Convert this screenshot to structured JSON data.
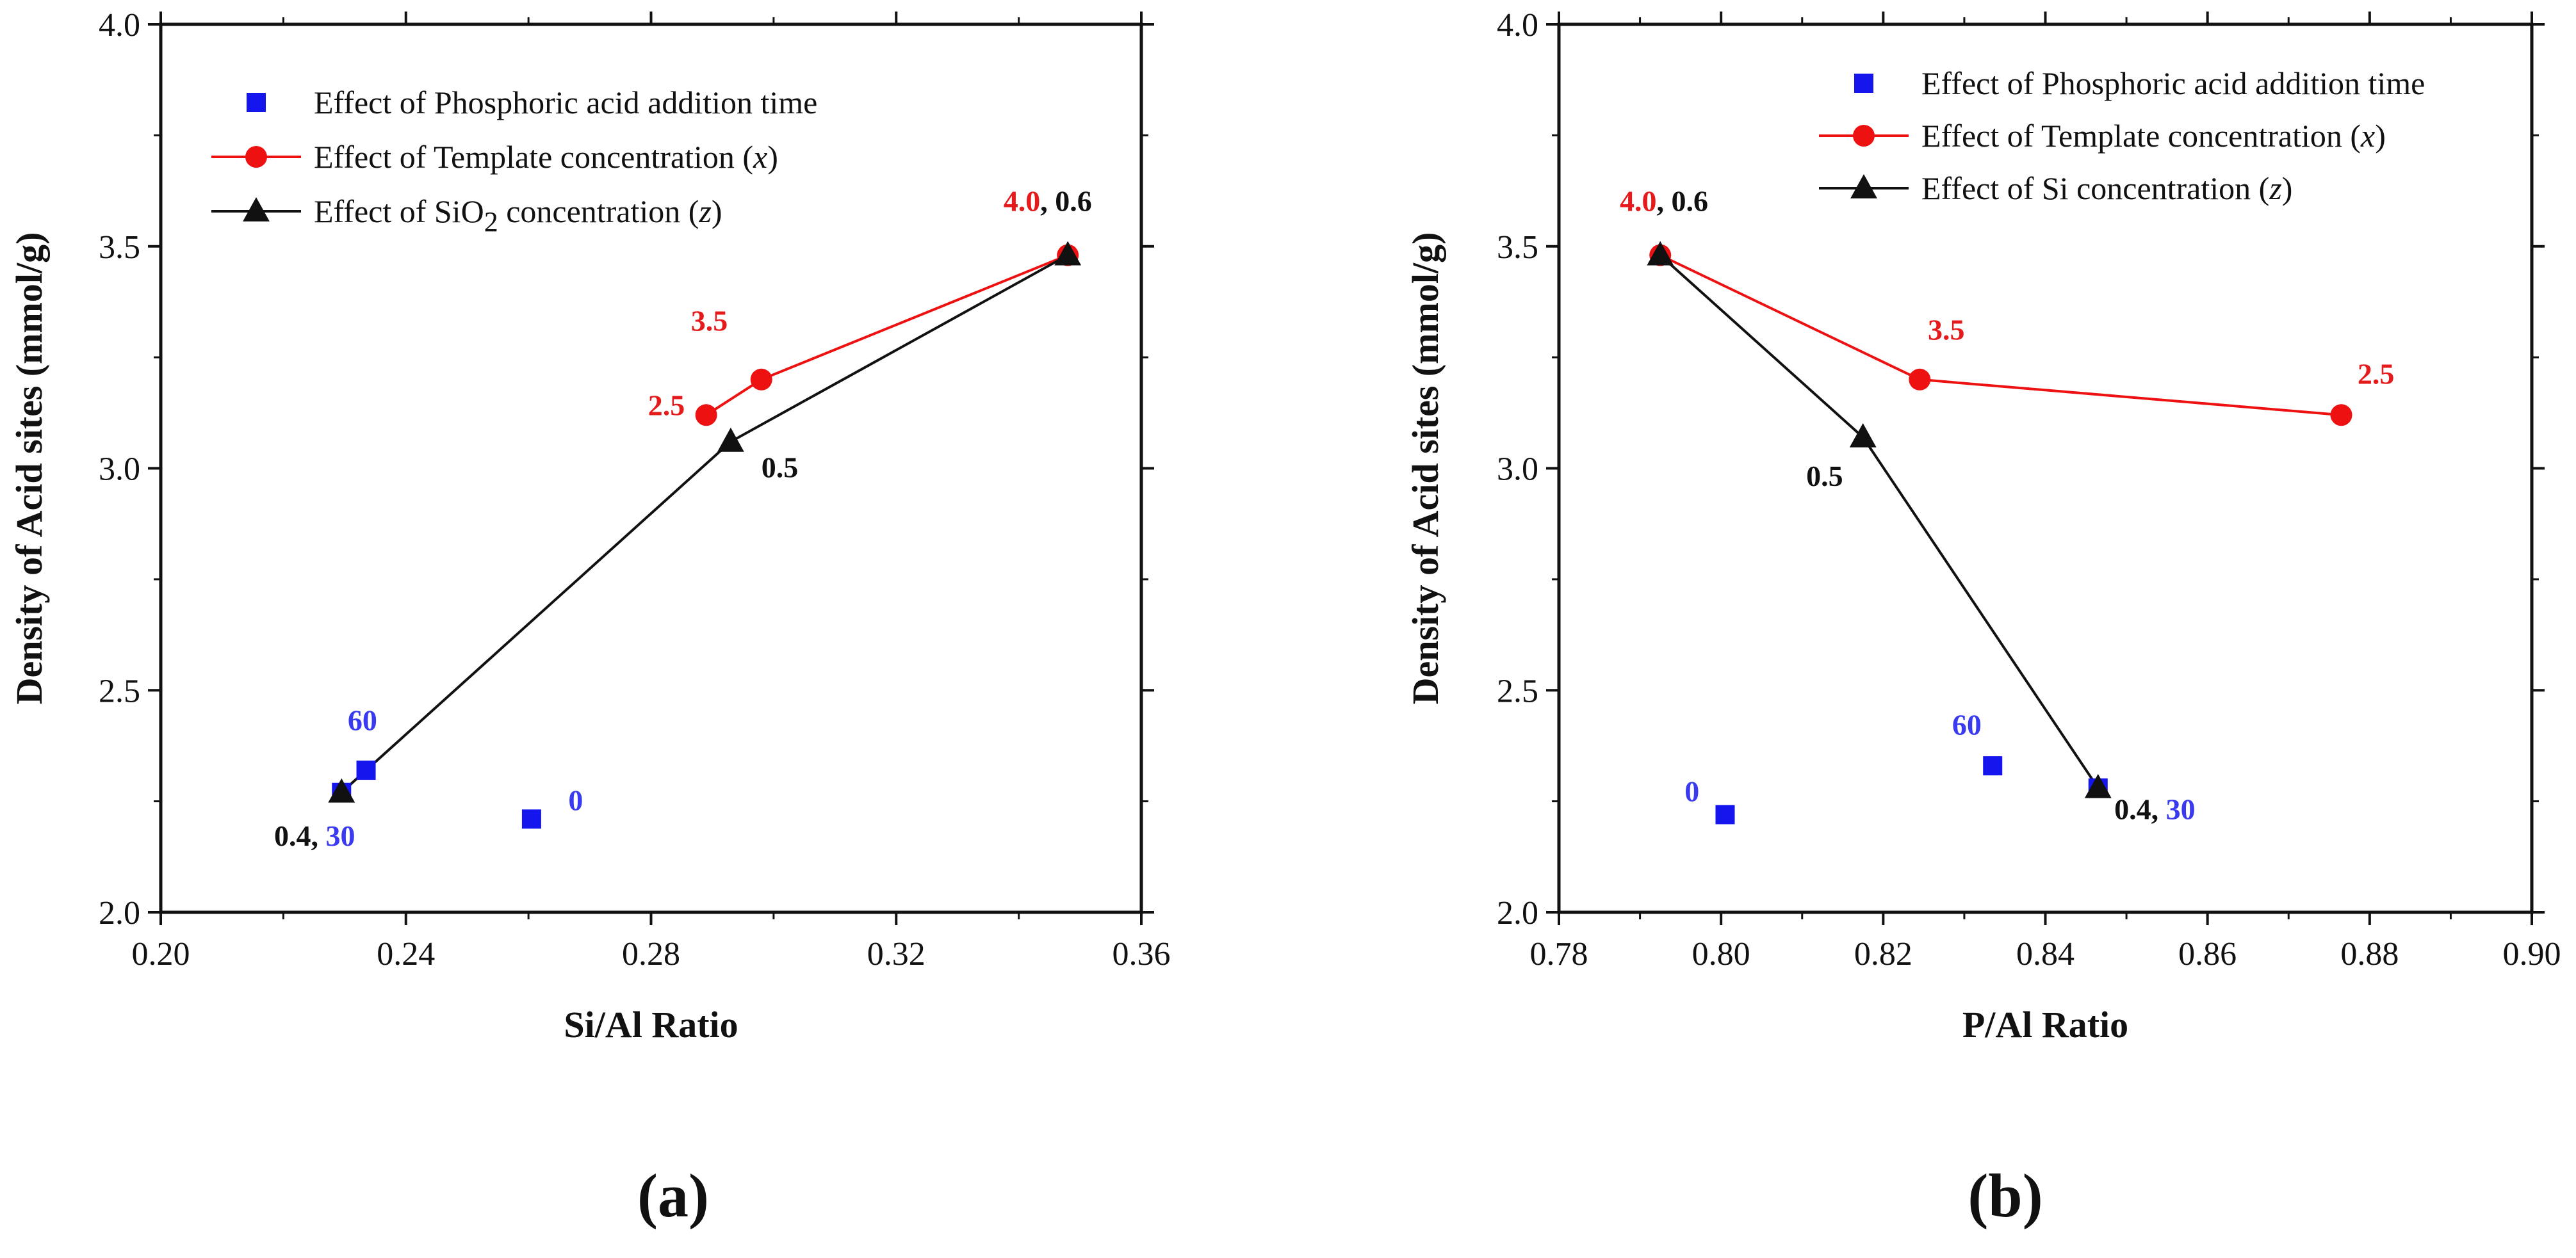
{
  "colors": {
    "blue": "#1515ee",
    "red": "#ee1111",
    "black": "#111111",
    "ann_blue": "#3a3af0",
    "ann_red": "#e51a1a"
  },
  "chart_data": [
    {
      "type": "scatter",
      "panel_label": "(a)",
      "xlabel": "Si/Al Ratio",
      "ylabel": "Density of Acid sites (mmol/g)",
      "xlim": [
        0.2,
        0.36
      ],
      "ylim": [
        2.0,
        4.0
      ],
      "xticks": [
        0.2,
        0.24,
        0.28,
        0.32,
        0.36
      ],
      "xtick_labels": [
        "0.20",
        "0.24",
        "0.28",
        "0.32",
        "0.36"
      ],
      "yticks": [
        2.0,
        2.5,
        3.0,
        3.5,
        4.0
      ],
      "ytick_labels": [
        "2.0",
        "2.5",
        "3.0",
        "3.5",
        "4.0"
      ],
      "legend": [
        {
          "marker": "square",
          "line": false,
          "color": "blue",
          "pre": "Effect of Phosphoric acid addition time"
        },
        {
          "marker": "circle",
          "line": true,
          "color": "red",
          "pre": "Effect of Template concentration (",
          "it": "x",
          "post": ")"
        },
        {
          "marker": "triangle",
          "line": true,
          "color": "black",
          "pre": "Effect of SiO",
          "sub": "2",
          "post2": " concentration (",
          "it": "z",
          "post": ")"
        }
      ],
      "series": [
        {
          "name": "Effect of Phosphoric acid addition time",
          "marker": "square",
          "color": "blue",
          "line": false,
          "points": [
            [
              0.2295,
              2.27
            ],
            [
              0.2335,
              2.32
            ],
            [
              0.2605,
              2.21
            ]
          ]
        },
        {
          "name": "Effect of Template concentration (x)",
          "marker": "circle",
          "color": "red",
          "line": true,
          "points": [
            [
              0.289,
              3.12
            ],
            [
              0.298,
              3.2
            ],
            [
              0.348,
              3.48
            ]
          ]
        },
        {
          "name": "Effect of SiO2 concentration (z)",
          "marker": "triangle",
          "color": "black",
          "line": true,
          "points": [
            [
              0.2295,
              2.27
            ],
            [
              0.293,
              3.06
            ],
            [
              0.348,
              3.48
            ]
          ]
        }
      ],
      "annotations": [
        {
          "parts": [
            {
              "text": "60",
              "color": "ann_blue"
            }
          ],
          "x": 0.2305,
          "y": 2.41
        },
        {
          "parts": [
            {
              "text": "0",
              "color": "ann_blue"
            }
          ],
          "x": 0.2665,
          "y": 2.23
        },
        {
          "parts": [
            {
              "text": "0.4, ",
              "color": "black"
            },
            {
              "text": "30",
              "color": "ann_blue"
            }
          ],
          "x": 0.2185,
          "y": 2.15
        },
        {
          "parts": [
            {
              "text": "2.5",
              "color": "ann_red"
            }
          ],
          "x": 0.2795,
          "y": 3.12
        },
        {
          "parts": [
            {
              "text": "3.5",
              "color": "ann_red"
            }
          ],
          "x": 0.2865,
          "y": 3.31
        },
        {
          "parts": [
            {
              "text": "0.5",
              "color": "black"
            }
          ],
          "x": 0.298,
          "y": 2.98
        },
        {
          "parts": [
            {
              "text": "4.0",
              "color": "ann_red"
            },
            {
              "text": ", 0.6",
              "color": "black"
            }
          ],
          "x": 0.3375,
          "y": 3.58
        }
      ]
    },
    {
      "type": "scatter",
      "panel_label": "(b)",
      "xlabel": "P/Al Ratio",
      "ylabel": "Density of Acid sites (mmol/g)",
      "xlim": [
        0.78,
        0.9
      ],
      "ylim": [
        2.0,
        4.0
      ],
      "xticks": [
        0.78,
        0.8,
        0.82,
        0.84,
        0.86,
        0.88,
        0.9
      ],
      "xtick_labels": [
        "0.78",
        "0.80",
        "0.82",
        "0.84",
        "0.86",
        "0.88",
        "0.90"
      ],
      "yticks": [
        2.0,
        2.5,
        3.0,
        3.5,
        4.0
      ],
      "ytick_labels": [
        "2.0",
        "2.5",
        "3.0",
        "3.5",
        "4.0"
      ],
      "legend": [
        {
          "marker": "square",
          "line": false,
          "color": "blue",
          "pre": "Effect of Phosphoric acid addition time"
        },
        {
          "marker": "circle",
          "line": true,
          "color": "red",
          "pre": "Effect of Template concentration (",
          "it": "x",
          "post": ")"
        },
        {
          "marker": "triangle",
          "line": true,
          "color": "black",
          "pre": "Effect of Si concentration (",
          "it": "z",
          "post": ")"
        }
      ],
      "series": [
        {
          "name": "Effect of Phosphoric acid addition time",
          "marker": "square",
          "color": "blue",
          "line": false,
          "points": [
            [
              0.8005,
              2.22
            ],
            [
              0.8335,
              2.33
            ],
            [
              0.8465,
              2.28
            ]
          ]
        },
        {
          "name": "Effect of Template concentration (x)",
          "marker": "circle",
          "color": "red",
          "line": true,
          "points": [
            [
              0.7925,
              3.48
            ],
            [
              0.8245,
              3.2
            ],
            [
              0.8765,
              3.12
            ]
          ]
        },
        {
          "name": "Effect of Si concentration (z)",
          "marker": "triangle",
          "color": "black",
          "line": true,
          "points": [
            [
              0.7925,
              3.48
            ],
            [
              0.8175,
              3.07
            ],
            [
              0.8465,
              2.28
            ]
          ]
        }
      ],
      "annotations": [
        {
          "parts": [
            {
              "text": "60",
              "color": "ann_blue"
            }
          ],
          "x": 0.8285,
          "y": 2.4
        },
        {
          "parts": [
            {
              "text": "0",
              "color": "ann_blue"
            }
          ],
          "x": 0.7955,
          "y": 2.25
        },
        {
          "parts": [
            {
              "text": "0.4, ",
              "color": "black"
            },
            {
              "text": "30",
              "color": "ann_blue"
            }
          ],
          "x": 0.8485,
          "y": 2.21
        },
        {
          "parts": [
            {
              "text": "3.5",
              "color": "ann_red"
            }
          ],
          "x": 0.8255,
          "y": 3.29
        },
        {
          "parts": [
            {
              "text": "2.5",
              "color": "ann_red"
            }
          ],
          "x": 0.8785,
          "y": 3.19
        },
        {
          "parts": [
            {
              "text": "0.5",
              "color": "black"
            }
          ],
          "x": 0.8105,
          "y": 2.96
        },
        {
          "parts": [
            {
              "text": "4.0",
              "color": "ann_red"
            },
            {
              "text": ", 0.6",
              "color": "black"
            }
          ],
          "x": 0.7875,
          "y": 3.58
        }
      ]
    }
  ]
}
